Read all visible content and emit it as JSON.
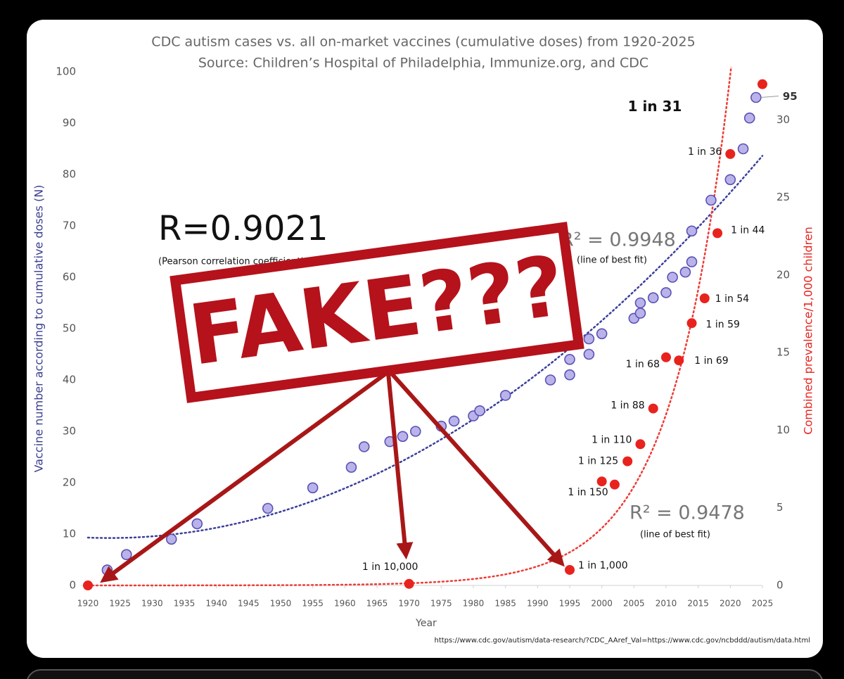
{
  "chart_data": {
    "type": "scatter",
    "title": "CDC autism cases vs. all on-market vaccines (cumulative doses) from 1920-2025",
    "subtitle": "Source: Children’s Hospital of Philadelphia, Immunize.org, and CDC",
    "x_label": "Year",
    "y_label": "Vaccine number according to cumulative doses (N)",
    "y2_label": "Combined prevalence/1,000 children",
    "xlim": [
      1920,
      2025
    ],
    "xticks": [
      1920,
      1925,
      1930,
      1935,
      1940,
      1945,
      1950,
      1955,
      1960,
      1965,
      1970,
      1975,
      1980,
      1985,
      1990,
      1995,
      2000,
      2005,
      2010,
      2015,
      2020,
      2025
    ],
    "ylim": [
      0,
      100
    ],
    "yticks": [
      0,
      10,
      20,
      30,
      40,
      50,
      60,
      70,
      80,
      90,
      100
    ],
    "y2lim": [
      0,
      33.1
    ],
    "y2ticks": [
      0,
      5,
      10,
      15,
      20,
      25,
      30
    ],
    "grid": false,
    "series": [
      {
        "color": "#5b52b5",
        "axis": "y",
        "x": [
          1923,
          1926,
          1933,
          1937,
          1948,
          1955,
          1961,
          1963,
          1967,
          1969,
          1971,
          1975,
          1977,
          1980,
          1981,
          1985,
          1992,
          1995,
          1995,
          1998,
          1998,
          2000,
          2005,
          2006,
          2006,
          2008,
          2010,
          2011,
          2013,
          2014,
          2014,
          2017,
          2020,
          2022,
          2023,
          2024
        ],
        "values": [
          3,
          6,
          9,
          12,
          15,
          19,
          23,
          27,
          28,
          29,
          30,
          31,
          32,
          33,
          34,
          37,
          40,
          41,
          44,
          45,
          48,
          49,
          52,
          53,
          55,
          56,
          57,
          60,
          61,
          63,
          69,
          75,
          79,
          85,
          91,
          95
        ]
      },
      {
        "color": "#e8231e",
        "axis": "y2",
        "x": [
          1920,
          1970,
          1995,
          2000,
          2002,
          2004,
          2006,
          2008,
          2010,
          2012,
          2014,
          2016,
          2018,
          2020,
          2025
        ],
        "values": [
          0,
          0.1,
          1.0,
          6.7,
          6.5,
          8.0,
          9.1,
          11.4,
          14.7,
          14.5,
          16.9,
          18.5,
          22.7,
          27.8,
          32.3
        ],
        "value_labels": [
          null,
          "1 in 10,000",
          "1 in 1,000",
          "1 in 150",
          null,
          "1 in 125",
          "1 in 110",
          "1 in 88",
          "1 in 68",
          "1 in 69",
          "1 in 59",
          "1 in 54",
          "1 in 44",
          "1 in 36",
          "1 in 31"
        ]
      }
    ],
    "annotations": [
      "R=0.9021",
      "(Pearson correlation coefficient)",
      "R² = 0.9948",
      "(line of best fit)",
      "R² = 0.9478",
      "(line of best fit)"
    ],
    "source_url": "https://www.cdc.gov/autism/data-research/?CDC_AAref_Val=https://www.cdc.gov/ncbddd/autism/data.html"
  },
  "overlay_text": "FAKE???"
}
